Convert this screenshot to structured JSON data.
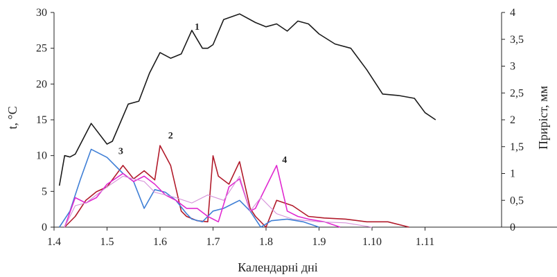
{
  "chart_data": {
    "type": "line",
    "xlabel": "Календарні дні",
    "ylabel_left": "t, °C",
    "ylabel_right": "Приріст, мм",
    "x_ticks": [
      "1.4",
      "1.5",
      "1.6",
      "1.7",
      "1.8",
      "1.9",
      "1.10",
      "1.11"
    ],
    "ylim_left": [
      0,
      30
    ],
    "yticks_left": [
      "0",
      "5",
      "10",
      "15",
      "20",
      "25",
      "30"
    ],
    "ylim_right": [
      0,
      4
    ],
    "yticks_right": [
      "0",
      "0,5",
      "1",
      "1,5",
      "2",
      "2,5",
      "3",
      "3,5",
      "4"
    ],
    "grid": false,
    "series": [
      {
        "name": "1",
        "axis": "left",
        "color": "#1a1a1a",
        "x": [
          1.41,
          1.42,
          1.43,
          1.44,
          1.47,
          1.5,
          1.51,
          1.54,
          1.56,
          1.58,
          1.6,
          1.62,
          1.64,
          1.66,
          1.68,
          1.69,
          1.7,
          1.72,
          1.75,
          1.78,
          1.8,
          1.82,
          1.84,
          1.86,
          1.88,
          1.9,
          1.93,
          1.96,
          1.99,
          2.02,
          2.05,
          2.08,
          2.1,
          2.12
        ],
        "y": [
          5.8,
          10,
          9.8,
          10.2,
          14.5,
          11.6,
          12,
          17.2,
          17.6,
          21.5,
          24.4,
          23.6,
          24.2,
          27.5,
          25,
          25,
          25.5,
          29,
          29.8,
          28.6,
          28,
          28.4,
          27.4,
          28.8,
          28.4,
          27,
          25.6,
          25,
          22,
          18.6,
          18.4,
          18,
          16,
          15
        ]
      },
      {
        "name": "2",
        "axis": "right",
        "color": "#b11a2a",
        "x": [
          1.42,
          1.44,
          1.46,
          1.48,
          1.5,
          1.53,
          1.55,
          1.57,
          1.59,
          1.6,
          1.62,
          1.64,
          1.65,
          1.67,
          1.69,
          1.7,
          1.71,
          1.73,
          1.75,
          1.77,
          1.78,
          1.8,
          1.82,
          1.85,
          1.88,
          1.91,
          1.95,
          1.99,
          2.03,
          2.07
        ],
        "y": [
          0,
          0.2,
          0.5,
          0.66,
          0.75,
          1.15,
          0.9,
          1.05,
          0.88,
          1.52,
          1.15,
          0.3,
          0.2,
          0.12,
          0.1,
          1.33,
          0.95,
          0.8,
          1.22,
          0.35,
          0.2,
          0,
          0.5,
          0.4,
          0.2,
          0.17,
          0.15,
          0.1,
          0.1,
          0
        ]
      },
      {
        "name": "3",
        "axis": "right",
        "color": "#3f7fd6",
        "x": [
          1.41,
          1.43,
          1.45,
          1.47,
          1.5,
          1.53,
          1.55,
          1.57,
          1.59,
          1.61,
          1.63,
          1.65,
          1.66,
          1.68,
          1.7,
          1.72,
          1.74,
          1.75,
          1.77,
          1.79,
          1.81,
          1.84,
          1.87,
          1.9
        ],
        "y": [
          0,
          0.3,
          0.9,
          1.45,
          1.3,
          1,
          0.85,
          0.35,
          0.7,
          0.65,
          0.5,
          0.25,
          0.15,
          0.1,
          0.3,
          0.35,
          0.45,
          0.5,
          0.3,
          0,
          0.12,
          0.15,
          0.1,
          0
        ]
      },
      {
        "name": "4",
        "axis": "right",
        "color": "#e028d0",
        "x": [
          1.42,
          1.44,
          1.46,
          1.48,
          1.5,
          1.53,
          1.55,
          1.57,
          1.59,
          1.61,
          1.63,
          1.65,
          1.67,
          1.69,
          1.71,
          1.73,
          1.75,
          1.77,
          1.78,
          1.8,
          1.82,
          1.84,
          1.86,
          1.88,
          1.91,
          1.94
        ],
        "y": [
          0,
          0.55,
          0.45,
          0.55,
          0.8,
          1,
          0.85,
          0.95,
          0.8,
          0.6,
          0.5,
          0.35,
          0.35,
          0.2,
          0.1,
          0.75,
          0.9,
          0.3,
          0.35,
          0.75,
          1.15,
          0.3,
          0.2,
          0.15,
          0.1,
          0
        ]
      },
      {
        "name": "",
        "axis": "right",
        "color": "#d58fd8",
        "x": [
          1.42,
          1.44,
          1.46,
          1.48,
          1.5,
          1.53,
          1.55,
          1.57,
          1.59,
          1.61,
          1.63,
          1.66,
          1.69,
          1.72,
          1.75,
          1.77,
          1.79,
          1.82,
          1.85,
          1.9,
          1.95,
          2.0
        ],
        "y": [
          0,
          0.4,
          0.45,
          0.6,
          0.75,
          0.95,
          0.9,
          0.85,
          0.65,
          0.6,
          0.55,
          0.45,
          0.6,
          0.5,
          0.95,
          0.3,
          0.55,
          0.25,
          0.15,
          0.1,
          0.08,
          0
        ]
      }
    ],
    "x_to_tick": [
      [
        1.4,
        0
      ],
      [
        1.5,
        1
      ],
      [
        1.6,
        2
      ],
      [
        1.7,
        3
      ],
      [
        1.8,
        4
      ],
      [
        1.9,
        5
      ],
      [
        2.0,
        6
      ],
      [
        2.1,
        7
      ]
    ]
  }
}
